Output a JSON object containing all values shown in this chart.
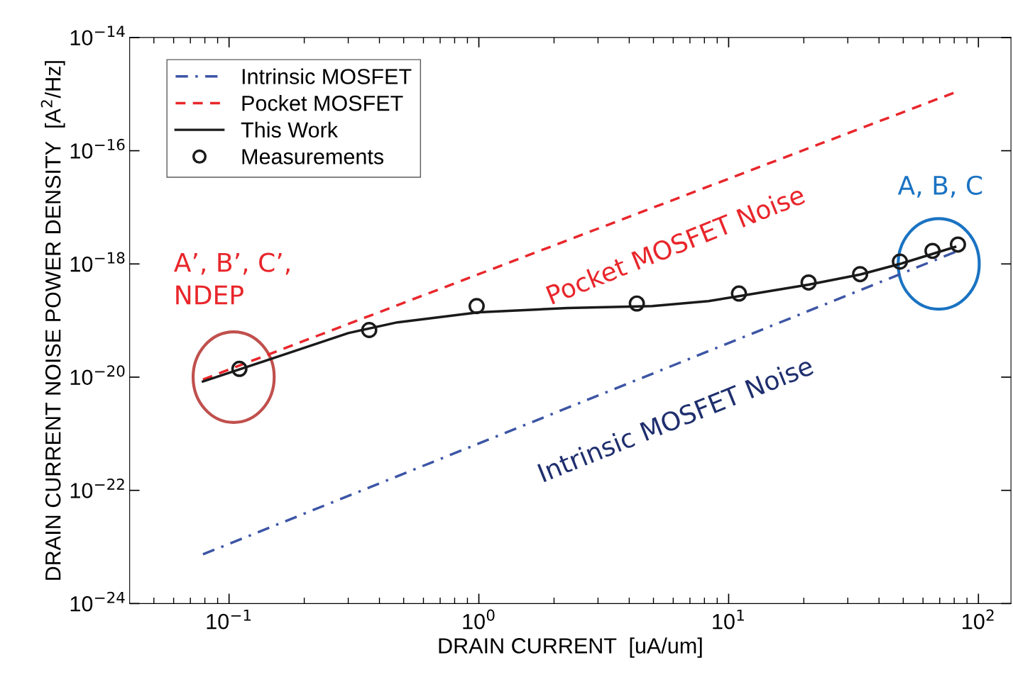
{
  "chart_data": {
    "type": "line",
    "xlabel": "DRAIN CURRENT  [uA/um]",
    "ylabel": "DRAIN CURRENT NOISE POWER DENSITY  [A$^{2}$/Hz]",
    "log": "xy",
    "xlim": [
      0.04,
      135
    ],
    "ylim": [
      1e-24,
      1e-14
    ],
    "xticks": [
      {
        "value": 0.05,
        "label": null
      },
      {
        "value": 0.06,
        "label": null
      },
      {
        "value": 0.07,
        "label": null
      },
      {
        "value": 0.08,
        "label": null
      },
      {
        "value": 0.09,
        "label": null
      },
      {
        "value": 0.1,
        "label": "10$^{−1}$"
      },
      {
        "value": 0.2,
        "label": null
      },
      {
        "value": 0.3,
        "label": null
      },
      {
        "value": 0.4,
        "label": null
      },
      {
        "value": 0.5,
        "label": null
      },
      {
        "value": 0.6,
        "label": null
      },
      {
        "value": 0.7,
        "label": null
      },
      {
        "value": 0.8,
        "label": null
      },
      {
        "value": 0.9,
        "label": null
      },
      {
        "value": 1,
        "label": "10$^{0}$"
      },
      {
        "value": 2,
        "label": null
      },
      {
        "value": 3,
        "label": null
      },
      {
        "value": 4,
        "label": null
      },
      {
        "value": 5,
        "label": null
      },
      {
        "value": 6,
        "label": null
      },
      {
        "value": 7,
        "label": null
      },
      {
        "value": 8,
        "label": null
      },
      {
        "value": 9,
        "label": null
      },
      {
        "value": 10,
        "label": "10$^{1}$"
      },
      {
        "value": 20,
        "label": null
      },
      {
        "value": 30,
        "label": null
      },
      {
        "value": 40,
        "label": null
      },
      {
        "value": 50,
        "label": null
      },
      {
        "value": 60,
        "label": null
      },
      {
        "value": 70,
        "label": null
      },
      {
        "value": 80,
        "label": null
      },
      {
        "value": 90,
        "label": null
      },
      {
        "value": 100,
        "label": "10$^{2}$"
      }
    ],
    "yticks": [
      {
        "value": 1e-24,
        "label": "10$^{−24}$"
      },
      {
        "value": 1e-22,
        "label": "10$^{−22}$"
      },
      {
        "value": 1e-20,
        "label": "10$^{−20}$"
      },
      {
        "value": 1e-18,
        "label": "10$^{−18}$"
      },
      {
        "value": 1e-16,
        "label": "10$^{−16}$"
      },
      {
        "value": 1e-14,
        "label": "10$^{−14}$"
      }
    ],
    "grid": false,
    "legend": "top left",
    "series": [
      {
        "name": "Intrinsic MOSFET",
        "color": "#3c55a5",
        "line_style": "dashdot",
        "x": [
          0.0786,
          82.8
        ],
        "values": [
          7.4e-24,
          1.7e-18
        ]
      },
      {
        "name": "Pocket MOSFET",
        "color": "#e8262b",
        "line_style": "dashed",
        "x": [
          0.0786,
          81.7
        ],
        "values": [
          9.1e-21,
          1.1e-15
        ]
      },
      {
        "name": "This Work",
        "color": "#1a1a1a",
        "line_style": "solid",
        "x": [
          0.0786,
          0.166,
          0.3,
          0.472,
          1.0,
          2.26,
          4.94,
          8.3,
          11.0,
          20.9,
          33.6,
          48.5,
          80.7
        ],
        "values": [
          8.4e-21,
          2.5e-20,
          6e-20,
          9.3e-20,
          1.4e-19,
          1.66e-19,
          1.8e-19,
          2.2e-19,
          2.7e-19,
          4.3e-19,
          6.5e-19,
          1e-18,
          2e-18
        ]
      },
      {
        "name": "Measurements",
        "type": "scatter",
        "color": "#1a1a1a",
        "marker": "circle",
        "x": [
          0.11,
          0.364,
          0.98,
          4.29,
          11.0,
          20.9,
          33.6,
          48.5,
          65.5,
          82.8
        ],
        "values": [
          1.4e-20,
          6.8e-20,
          1.8e-19,
          2e-19,
          3e-19,
          4.7e-19,
          6.6e-19,
          1.1e-18,
          1.7e-18,
          2.2e-18
        ]
      }
    ],
    "annotations": [
      "Pocket MOSFET Noise",
      "Intrinsic MOSFET Noise",
      "A’, B’, C’,\nNDEP",
      "A, B, C"
    ]
  }
}
